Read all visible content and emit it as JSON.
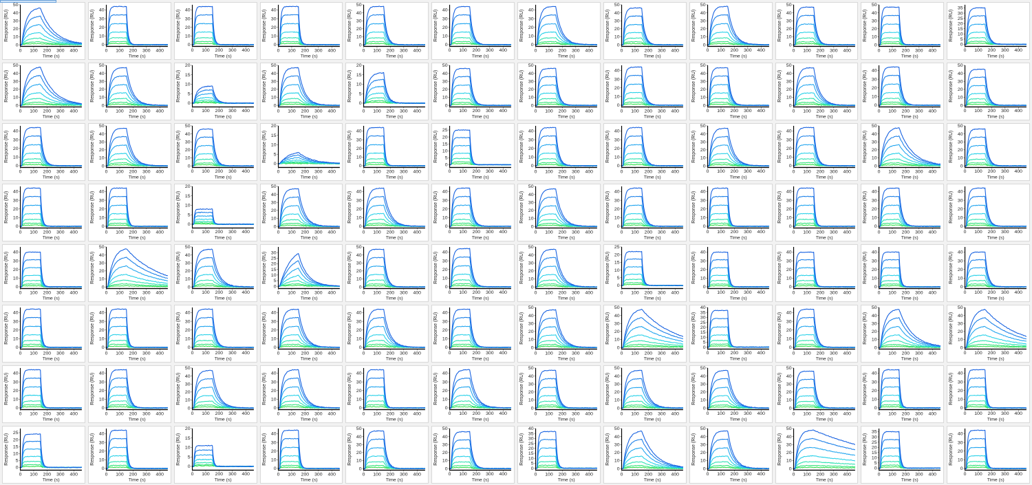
{
  "palette": [
    "#1560e0",
    "#1a7fe8",
    "#1fa4ef",
    "#25d0e8",
    "#2be0b0",
    "#2ee27a",
    "#2fe04a"
  ],
  "chart_data": {
    "type": "line",
    "layout": "8x12 grid of sensorgrams",
    "xlabel": "Time (s)",
    "ylabel": "Response (RU)",
    "xlim": [
      0,
      460
    ],
    "xticks": [
      0,
      100,
      200,
      300,
      400
    ],
    "injection_end_s": 150,
    "n_concentrations": 7,
    "panels": [
      {
        "ymax": 50,
        "ticks": [
          0,
          10,
          20,
          30,
          40,
          50
        ],
        "rmax": 46,
        "kind": "slow"
      },
      {
        "ymax": 46,
        "ticks": [
          0,
          10,
          20,
          30,
          40
        ],
        "rmax": 44,
        "kind": "fast"
      },
      {
        "ymax": 46,
        "ticks": [
          0,
          10,
          20,
          30,
          40
        ],
        "rmax": 44,
        "kind": "fast"
      },
      {
        "ymax": 46,
        "ticks": [
          0,
          10,
          20,
          30,
          40
        ],
        "rmax": 44,
        "kind": "fast"
      },
      {
        "ymax": 50,
        "ticks": [
          0,
          10,
          20,
          30,
          40,
          50
        ],
        "rmax": 48,
        "kind": "fast2"
      },
      {
        "ymax": 46,
        "ticks": [
          0,
          10,
          20,
          30,
          40
        ],
        "rmax": 44,
        "kind": "fast2"
      },
      {
        "ymax": 46,
        "ticks": [
          0,
          10,
          20,
          30,
          40
        ],
        "rmax": 44,
        "kind": "medium"
      },
      {
        "ymax": 50,
        "ticks": [
          0,
          10,
          20,
          30,
          40,
          50
        ],
        "rmax": 46,
        "kind": "fast2"
      },
      {
        "ymax": 50,
        "ticks": [
          0,
          10,
          20,
          30,
          40,
          50
        ],
        "rmax": 48,
        "kind": "medium"
      },
      {
        "ymax": 50,
        "ticks": [
          0,
          10,
          20,
          30,
          40,
          50
        ],
        "rmax": 47,
        "kind": "fast2"
      },
      {
        "ymax": 50,
        "ticks": [
          0,
          10,
          20,
          30,
          40,
          50
        ],
        "rmax": 47,
        "kind": "fast"
      },
      {
        "ymax": 38,
        "ticks": [
          0,
          5,
          10,
          15,
          20,
          25,
          30,
          35
        ],
        "rmax": 35,
        "kind": "fast2"
      },
      {
        "ymax": 50,
        "ticks": [
          0,
          10,
          20,
          30,
          40,
          50
        ],
        "rmax": 48,
        "kind": "slow"
      },
      {
        "ymax": 50,
        "ticks": [
          0,
          10,
          20,
          30,
          40,
          50
        ],
        "rmax": 47,
        "kind": "medium"
      },
      {
        "ymax": 20,
        "ticks": [
          0,
          5,
          10,
          15,
          20
        ],
        "rmax": 9,
        "kind": "weak"
      },
      {
        "ymax": 50,
        "ticks": [
          0,
          10,
          20,
          30,
          40,
          50
        ],
        "rmax": 47,
        "kind": "medium"
      },
      {
        "ymax": 20,
        "ticks": [
          0,
          5,
          10,
          15,
          20
        ],
        "rmax": 16,
        "kind": "weak"
      },
      {
        "ymax": 50,
        "ticks": [
          0,
          10,
          20,
          30,
          40,
          50
        ],
        "rmax": 46,
        "kind": "fast2"
      },
      {
        "ymax": 50,
        "ticks": [
          0,
          10,
          20,
          30,
          40,
          50
        ],
        "rmax": 46,
        "kind": "fast2"
      },
      {
        "ymax": 46,
        "ticks": [
          0,
          10,
          20,
          30,
          40
        ],
        "rmax": 44,
        "kind": "fast2"
      },
      {
        "ymax": 50,
        "ticks": [
          0,
          10,
          20,
          30,
          40,
          50
        ],
        "rmax": 47,
        "kind": "fast2"
      },
      {
        "ymax": 50,
        "ticks": [
          0,
          10,
          20,
          30,
          40,
          50
        ],
        "rmax": 47,
        "kind": "medium"
      },
      {
        "ymax": 46,
        "ticks": [
          0,
          10,
          20,
          30,
          40
        ],
        "rmax": 44,
        "kind": "fast2"
      },
      {
        "ymax": 50,
        "ticks": [
          0,
          10,
          20,
          30,
          40,
          50
        ],
        "rmax": 45,
        "kind": "fast2"
      },
      {
        "ymax": 46,
        "ticks": [
          0,
          10,
          20,
          30,
          40
        ],
        "rmax": 44,
        "kind": "fast2"
      },
      {
        "ymax": 50,
        "ticks": [
          0,
          10,
          20,
          30,
          40,
          50
        ],
        "rmax": 47,
        "kind": "medium"
      },
      {
        "ymax": 50,
        "ticks": [
          0,
          10,
          20,
          30,
          40,
          50
        ],
        "rmax": 46,
        "kind": "fast2"
      },
      {
        "ymax": 20,
        "ticks": [
          0,
          5,
          10,
          15,
          20
        ],
        "rmax": 6,
        "kind": "weakslow"
      },
      {
        "ymax": 46,
        "ticks": [
          0,
          10,
          20,
          30,
          40
        ],
        "rmax": 44,
        "kind": "fast"
      },
      {
        "ymax": 28,
        "ticks": [
          0,
          5,
          10,
          15,
          20,
          25
        ],
        "rmax": 25,
        "kind": "fast"
      },
      {
        "ymax": 46,
        "ticks": [
          0,
          10,
          20,
          30,
          40
        ],
        "rmax": 44,
        "kind": "fast2"
      },
      {
        "ymax": 46,
        "ticks": [
          0,
          10,
          20,
          30,
          40
        ],
        "rmax": 44,
        "kind": "fast2"
      },
      {
        "ymax": 50,
        "ticks": [
          0,
          10,
          20,
          30,
          40,
          50
        ],
        "rmax": 47,
        "kind": "medium"
      },
      {
        "ymax": 46,
        "ticks": [
          0,
          10,
          20,
          30,
          40
        ],
        "rmax": 44,
        "kind": "fast2"
      },
      {
        "ymax": 50,
        "ticks": [
          0,
          10,
          20,
          30,
          40,
          50
        ],
        "rmax": 48,
        "kind": "slow"
      },
      {
        "ymax": 50,
        "ticks": [
          0,
          10,
          20,
          30,
          40,
          50
        ],
        "rmax": 46,
        "kind": "fast2"
      },
      {
        "ymax": 46,
        "ticks": [
          0,
          10,
          20,
          30,
          40
        ],
        "rmax": 44,
        "kind": "fast"
      },
      {
        "ymax": 46,
        "ticks": [
          0,
          10,
          20,
          30,
          40
        ],
        "rmax": 44,
        "kind": "fast"
      },
      {
        "ymax": 20,
        "ticks": [
          0,
          5,
          10,
          15,
          20
        ],
        "rmax": 8,
        "kind": "weakfast"
      },
      {
        "ymax": 50,
        "ticks": [
          0,
          10,
          20,
          30,
          40,
          50
        ],
        "rmax": 47,
        "kind": "medium"
      },
      {
        "ymax": 46,
        "ticks": [
          0,
          10,
          20,
          30,
          40
        ],
        "rmax": 44,
        "kind": "medium"
      },
      {
        "ymax": 46,
        "ticks": [
          0,
          10,
          20,
          30,
          40
        ],
        "rmax": 44,
        "kind": "fast2"
      },
      {
        "ymax": 50,
        "ticks": [
          0,
          10,
          20,
          30,
          40,
          50
        ],
        "rmax": 47,
        "kind": "medium"
      },
      {
        "ymax": 46,
        "ticks": [
          0,
          10,
          20,
          30,
          40
        ],
        "rmax": 44,
        "kind": "fast2"
      },
      {
        "ymax": 46,
        "ticks": [
          0,
          10,
          20,
          30,
          40
        ],
        "rmax": 44,
        "kind": "fast"
      },
      {
        "ymax": 46,
        "ticks": [
          0,
          10,
          20,
          30,
          40
        ],
        "rmax": 44,
        "kind": "fast"
      },
      {
        "ymax": 46,
        "ticks": [
          0,
          10,
          20,
          30,
          40
        ],
        "rmax": 44,
        "kind": "fast2"
      },
      {
        "ymax": 46,
        "ticks": [
          0,
          10,
          20,
          30,
          40
        ],
        "rmax": 44,
        "kind": "fast2"
      },
      {
        "ymax": 46,
        "ticks": [
          0,
          10,
          20,
          30,
          40
        ],
        "rmax": 40,
        "kind": "fast"
      },
      {
        "ymax": 50,
        "ticks": [
          0,
          10,
          20,
          30,
          40,
          50
        ],
        "rmax": 48,
        "kind": "veryslow"
      },
      {
        "ymax": 50,
        "ticks": [
          0,
          10,
          20,
          30,
          40,
          50
        ],
        "rmax": 47,
        "kind": "medium"
      },
      {
        "ymax": 35,
        "ticks": [
          0,
          5,
          10,
          15,
          20,
          25,
          30
        ],
        "rmax": 30,
        "kind": "slowbind"
      },
      {
        "ymax": 50,
        "ticks": [
          0,
          10,
          20,
          30,
          40,
          50
        ],
        "rmax": 47,
        "kind": "fast2"
      },
      {
        "ymax": 46,
        "ticks": [
          0,
          10,
          20,
          30,
          40
        ],
        "rmax": 44,
        "kind": "fast2"
      },
      {
        "ymax": 50,
        "ticks": [
          0,
          10,
          20,
          30,
          40,
          50
        ],
        "rmax": 47,
        "kind": "medium"
      },
      {
        "ymax": 25,
        "ticks": [
          0,
          5,
          10,
          15,
          20,
          25
        ],
        "rmax": 22,
        "kind": "fast"
      },
      {
        "ymax": 46,
        "ticks": [
          0,
          10,
          20,
          30,
          40
        ],
        "rmax": 40,
        "kind": "fast"
      },
      {
        "ymax": 46,
        "ticks": [
          0,
          10,
          20,
          30,
          40
        ],
        "rmax": 40,
        "kind": "fast"
      },
      {
        "ymax": 46,
        "ticks": [
          0,
          10,
          20,
          30,
          40
        ],
        "rmax": 40,
        "kind": "fast"
      },
      {
        "ymax": 46,
        "ticks": [
          0,
          10,
          20,
          30,
          40
        ],
        "rmax": 40,
        "kind": "fast2"
      },
      {
        "ymax": 46,
        "ticks": [
          0,
          10,
          20,
          30,
          40
        ],
        "rmax": 44,
        "kind": "fast"
      },
      {
        "ymax": 46,
        "ticks": [
          0,
          10,
          20,
          30,
          40
        ],
        "rmax": 44,
        "kind": "fast"
      },
      {
        "ymax": 46,
        "ticks": [
          0,
          10,
          20,
          30,
          40
        ],
        "rmax": 44,
        "kind": "fast2"
      },
      {
        "ymax": 46,
        "ticks": [
          0,
          10,
          20,
          30,
          40
        ],
        "rmax": 44,
        "kind": "medium"
      },
      {
        "ymax": 46,
        "ticks": [
          0,
          10,
          20,
          30,
          40
        ],
        "rmax": 44,
        "kind": "medium"
      },
      {
        "ymax": 46,
        "ticks": [
          0,
          10,
          20,
          30,
          40
        ],
        "rmax": 44,
        "kind": "fast2"
      },
      {
        "ymax": 50,
        "ticks": [
          0,
          10,
          20,
          30,
          40,
          50
        ],
        "rmax": 47,
        "kind": "medium"
      },
      {
        "ymax": 50,
        "ticks": [
          0,
          10,
          20,
          30,
          40,
          50
        ],
        "rmax": 48,
        "kind": "veryslow"
      },
      {
        "ymax": 40,
        "ticks": [
          0,
          5,
          10,
          15,
          20,
          25,
          30,
          35,
          40
        ],
        "rmax": 37,
        "kind": "fast"
      },
      {
        "ymax": 46,
        "ticks": [
          0,
          10,
          20,
          30,
          40
        ],
        "rmax": 44,
        "kind": "fast2"
      },
      {
        "ymax": 50,
        "ticks": [
          0,
          10,
          20,
          30,
          40,
          50
        ],
        "rmax": 48,
        "kind": "slow"
      },
      {
        "ymax": 50,
        "ticks": [
          0,
          10,
          20,
          30,
          40,
          50
        ],
        "rmax": 48,
        "kind": "veryslow"
      },
      {
        "ymax": 46,
        "ticks": [
          0,
          10,
          20,
          30,
          40
        ],
        "rmax": 44,
        "kind": "fast"
      },
      {
        "ymax": 46,
        "ticks": [
          0,
          10,
          20,
          30,
          40
        ],
        "rmax": 44,
        "kind": "fast2"
      },
      {
        "ymax": 50,
        "ticks": [
          0,
          10,
          20,
          30,
          40,
          50
        ],
        "rmax": 47,
        "kind": "medium"
      },
      {
        "ymax": 46,
        "ticks": [
          0,
          10,
          20,
          30,
          40
        ],
        "rmax": 44,
        "kind": "medium"
      },
      {
        "ymax": 46,
        "ticks": [
          0,
          10,
          20,
          30,
          40
        ],
        "rmax": 44,
        "kind": "fast"
      },
      {
        "ymax": 46,
        "ticks": [
          0,
          10,
          20,
          30,
          40
        ],
        "rmax": 44,
        "kind": "medium"
      },
      {
        "ymax": 50,
        "ticks": [
          0,
          10,
          20,
          30,
          40,
          50
        ],
        "rmax": 47,
        "kind": "fast2"
      },
      {
        "ymax": 50,
        "ticks": [
          0,
          10,
          20,
          30,
          40,
          50
        ],
        "rmax": 47,
        "kind": "medium"
      },
      {
        "ymax": 50,
        "ticks": [
          0,
          10,
          20,
          30,
          40,
          50
        ],
        "rmax": 47,
        "kind": "medium"
      },
      {
        "ymax": 50,
        "ticks": [
          0,
          10,
          20,
          30,
          40,
          50
        ],
        "rmax": 46,
        "kind": "fast2"
      },
      {
        "ymax": 46,
        "ticks": [
          0,
          10,
          20,
          30,
          40
        ],
        "rmax": 44,
        "kind": "fast"
      },
      {
        "ymax": 46,
        "ticks": [
          0,
          10,
          20,
          30,
          40
        ],
        "rmax": 44,
        "kind": "fast"
      },
      {
        "ymax": 28,
        "ticks": [
          0,
          5,
          10,
          15,
          20,
          25
        ],
        "rmax": 24,
        "kind": "fast"
      },
      {
        "ymax": 46,
        "ticks": [
          0,
          10,
          20,
          30,
          40
        ],
        "rmax": 44,
        "kind": "fast"
      },
      {
        "ymax": 20,
        "ticks": [
          0,
          5,
          10,
          15,
          20
        ],
        "rmax": 11,
        "kind": "weakfast"
      },
      {
        "ymax": 46,
        "ticks": [
          0,
          10,
          20,
          30,
          40
        ],
        "rmax": 44,
        "kind": "fast"
      },
      {
        "ymax": 50,
        "ticks": [
          0,
          10,
          20,
          30,
          40,
          50
        ],
        "rmax": 47,
        "kind": "fast2"
      },
      {
        "ymax": 50,
        "ticks": [
          0,
          10,
          20,
          30,
          40,
          50
        ],
        "rmax": 46,
        "kind": "fast2"
      },
      {
        "ymax": 40,
        "ticks": [
          0,
          5,
          10,
          15,
          20,
          25,
          30,
          35,
          40
        ],
        "rmax": 37,
        "kind": "fast"
      },
      {
        "ymax": 50,
        "ticks": [
          0,
          10,
          20,
          30,
          40,
          50
        ],
        "rmax": 47,
        "kind": "slow"
      },
      {
        "ymax": 50,
        "ticks": [
          0,
          10,
          20,
          30,
          40,
          50
        ],
        "rmax": 47,
        "kind": "medium"
      },
      {
        "ymax": 50,
        "ticks": [
          0,
          10,
          20,
          30,
          40,
          50
        ],
        "rmax": 48,
        "kind": "flat"
      },
      {
        "ymax": 38,
        "ticks": [
          0,
          5,
          10,
          15,
          20,
          25,
          30,
          35
        ],
        "rmax": 35,
        "kind": "fast"
      },
      {
        "ymax": 46,
        "ticks": [
          0,
          10,
          20,
          30,
          40
        ],
        "rmax": 44,
        "kind": "fast"
      }
    ]
  }
}
